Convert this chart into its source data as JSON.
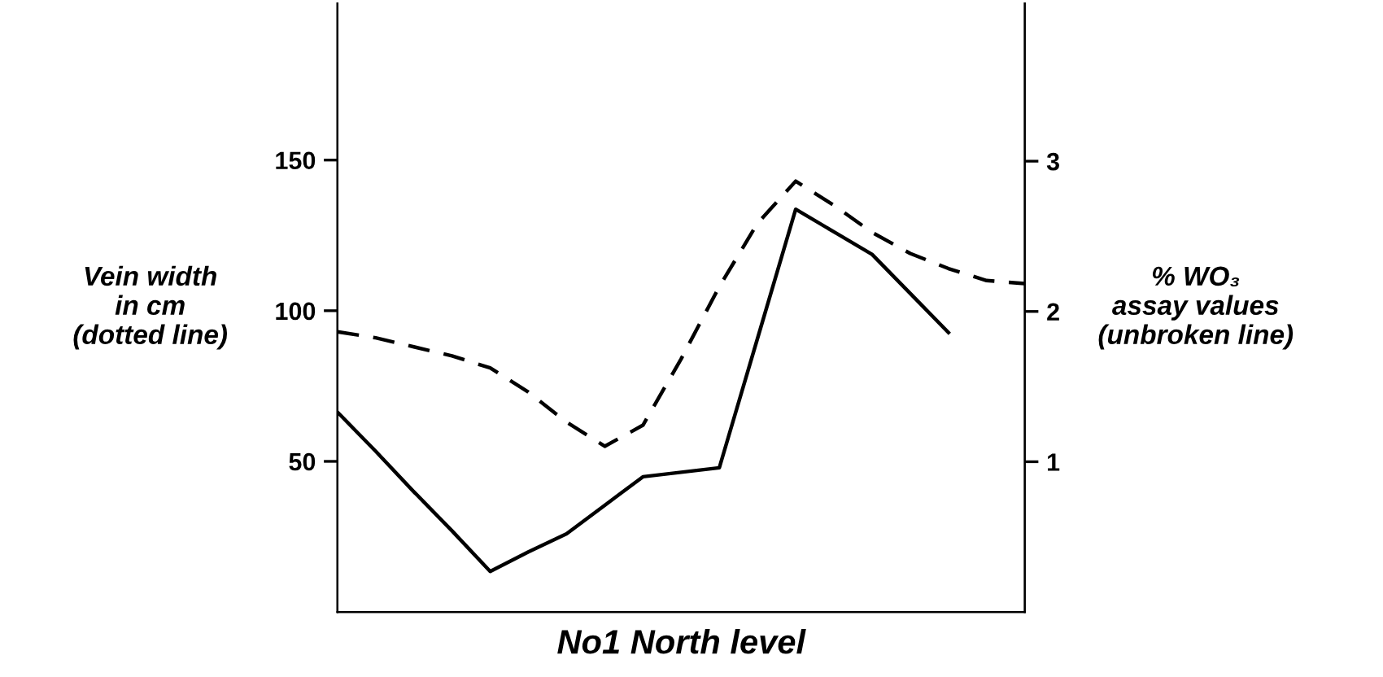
{
  "chart_data": {
    "type": "line",
    "xlabel": "No1 North level",
    "ylabel": "Vein width\nin cm\n(dotted line)",
    "y2label": "% WO₃\nassay values\n(unbroken line)",
    "categories": [
      null,
      null,
      null,
      null,
      null,
      null,
      null,
      null,
      null,
      null,
      null,
      null,
      null,
      null,
      null,
      null,
      null,
      null,
      null
    ],
    "ylim": [
      0,
      202
    ],
    "yticks": [
      50,
      100,
      150
    ],
    "y2lim": [
      0,
      4.05
    ],
    "y2ticks": [
      1,
      2,
      3
    ],
    "tick_labels": "y",
    "grid": false,
    "legend": false,
    "marker": "none",
    "series": [
      {
        "color": "#000000",
        "line_style": "dashed",
        "values": [
          93,
          91,
          88,
          85,
          81,
          73,
          63,
          55,
          62,
          84,
          108,
          129,
          143,
          135,
          126,
          119,
          114,
          110,
          109
        ]
      },
      {
        "color": "#000000",
        "line_style": "solid",
        "axis": "y2",
        "values": [
          1.33,
          1.07,
          0.8,
          0.54,
          0.27,
          0.4,
          0.52,
          0.71,
          0.9,
          0.93,
          0.96,
          1.82,
          2.68,
          2.53,
          2.38,
          2.12,
          1.86,
          null,
          null
        ]
      }
    ]
  }
}
